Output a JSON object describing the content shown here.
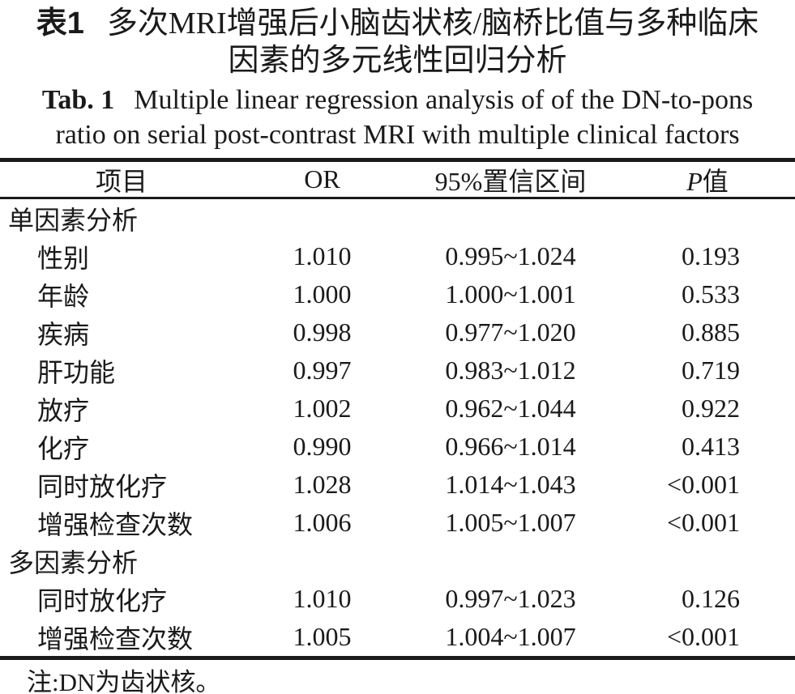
{
  "title": {
    "zh_label": "表1",
    "zh_line1": "多次MRI增强后小脑齿状核/脑桥比值与多种临床",
    "zh_line2": "因素的多元线性回归分析",
    "en_label": "Tab. 1",
    "en_line1": "Multiple linear regression analysis of of the DN-to-pons",
    "en_line2": "ratio on serial post-contrast MRI with multiple clinical factors"
  },
  "table": {
    "headers": {
      "item": "项目",
      "or": "OR",
      "ci": "95%置信区间",
      "p_italic": "P",
      "p_rest": "值"
    },
    "rows": [
      {
        "type": "section",
        "label": "单因素分析",
        "or": "",
        "ci": "",
        "p": ""
      },
      {
        "type": "item",
        "label": "性别",
        "or": "1.010",
        "ci": "0.995~1.024",
        "p": "0.193"
      },
      {
        "type": "item",
        "label": "年龄",
        "or": "1.000",
        "ci": "1.000~1.001",
        "p": "0.533"
      },
      {
        "type": "item",
        "label": "疾病",
        "or": "0.998",
        "ci": "0.977~1.020",
        "p": "0.885"
      },
      {
        "type": "item",
        "label": "肝功能",
        "or": "0.997",
        "ci": "0.983~1.012",
        "p": "0.719"
      },
      {
        "type": "item",
        "label": "放疗",
        "or": "1.002",
        "ci": "0.962~1.044",
        "p": "0.922"
      },
      {
        "type": "item",
        "label": "化疗",
        "or": "0.990",
        "ci": "0.966~1.014",
        "p": "0.413"
      },
      {
        "type": "item",
        "label": "同时放化疗",
        "or": "1.028",
        "ci": "1.014~1.043",
        "p": "<0.001"
      },
      {
        "type": "item",
        "label": "增强检查次数",
        "or": "1.006",
        "ci": "1.005~1.007",
        "p": "<0.001"
      },
      {
        "type": "section",
        "label": "多因素分析",
        "or": "",
        "ci": "",
        "p": ""
      },
      {
        "type": "item",
        "label": "同时放化疗",
        "or": "1.010",
        "ci": "0.997~1.023",
        "p": "0.126"
      },
      {
        "type": "item",
        "label": "增强检查次数",
        "or": "1.005",
        "ci": "1.004~1.007",
        "p": "<0.001"
      }
    ]
  },
  "note": "注:DN为齿状核。",
  "colors": {
    "text": "#1a1a1a",
    "rule": "#1a1a1a",
    "background": "#ffffff"
  }
}
